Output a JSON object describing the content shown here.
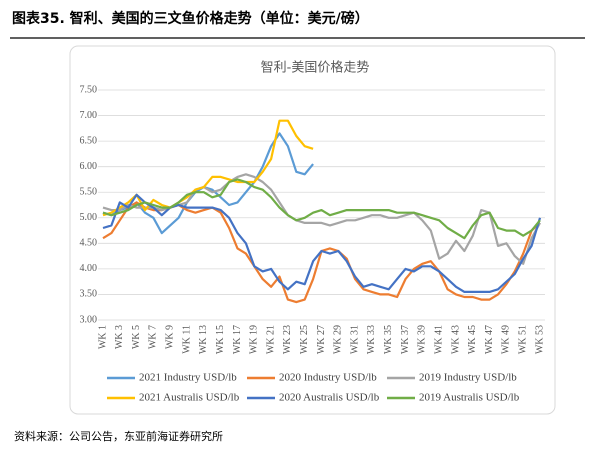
{
  "header": {
    "title": "图表35. 智利、美国的三文鱼价格走势（单位：美元/磅）"
  },
  "source": "资料来源：公司公告，东亚前海证券研究所",
  "chart_data": {
    "type": "line",
    "title": "智利-美国价格走势",
    "categories": [
      "WK 1",
      null,
      "WK 3",
      null,
      "WK 5",
      null,
      "WK 7",
      null,
      "WK 9",
      null,
      "WK 11",
      null,
      "WK 13",
      null,
      "WK 15",
      null,
      "WK 17",
      null,
      "WK 19",
      null,
      "WK 21",
      null,
      "WK 23",
      null,
      "WK 25",
      null,
      "WK 27",
      null,
      "WK 29",
      null,
      "WK 31",
      null,
      "WK 33",
      null,
      "WK 35",
      null,
      "WK 37",
      null,
      "WK 39",
      null,
      "WK 41",
      null,
      "WK 43",
      null,
      "WK 45",
      null,
      "WK 47",
      null,
      "WK 49",
      null,
      "WK 51",
      null,
      "WK 53"
    ],
    "ylim": [
      3,
      7.5
    ],
    "yticks": [
      {
        "value": 3,
        "label": "3.00"
      },
      {
        "value": 3.5,
        "label": "3.50"
      },
      {
        "value": 4,
        "label": "4.00"
      },
      {
        "value": 4.5,
        "label": "4.50"
      },
      {
        "value": 5,
        "label": "5.00"
      },
      {
        "value": 5.5,
        "label": "5.50"
      },
      {
        "value": 6,
        "label": "6.00"
      },
      {
        "value": 6.5,
        "label": "6.50"
      },
      {
        "value": 7,
        "label": "7.00"
      },
      {
        "value": 7.5,
        "label": "7.50"
      }
    ],
    "grid": true,
    "legend": "bottom",
    "series": [
      {
        "name": "2021 Industry USD/lb",
        "color": "#5B9BD5",
        "values": [
          5.1,
          5.05,
          5.15,
          5.2,
          5.3,
          5.1,
          5.0,
          4.7,
          4.85,
          5.0,
          5.3,
          5.5,
          5.6,
          5.55,
          5.4,
          5.25,
          5.3,
          5.5,
          5.7,
          6.0,
          6.4,
          6.65,
          6.4,
          5.9,
          5.85,
          6.05,
          null,
          null,
          null,
          null,
          null,
          null,
          null,
          null,
          null,
          null,
          null,
          null,
          null,
          null,
          null,
          null,
          null,
          null,
          null,
          null,
          null,
          null,
          null,
          null,
          null,
          null,
          null
        ]
      },
      {
        "name": "2020 Industry USD/lb",
        "color": "#ED7D31",
        "values": [
          4.6,
          4.7,
          4.95,
          5.2,
          5.3,
          5.2,
          5.15,
          5.15,
          5.2,
          5.25,
          5.15,
          5.1,
          5.15,
          5.2,
          5.1,
          4.8,
          4.4,
          4.3,
          4.05,
          3.8,
          3.65,
          3.85,
          3.4,
          3.35,
          3.4,
          3.8,
          4.35,
          4.4,
          4.35,
          4.2,
          3.8,
          3.6,
          3.55,
          3.5,
          3.5,
          3.45,
          3.8,
          4.0,
          4.1,
          4.15,
          3.95,
          3.6,
          3.5,
          3.45,
          3.45,
          3.4,
          3.4,
          3.5,
          3.7,
          3.95,
          4.3,
          4.75,
          4.9
        ]
      },
      {
        "name": "2019 Industry USD/lb",
        "color": "#A5A5A5",
        "values": [
          5.2,
          5.15,
          5.15,
          5.25,
          5.2,
          5.2,
          5.2,
          5.15,
          5.2,
          5.25,
          5.3,
          5.55,
          5.6,
          5.5,
          5.55,
          5.7,
          5.8,
          5.85,
          5.8,
          5.7,
          5.55,
          5.3,
          5.05,
          4.95,
          4.9,
          4.9,
          4.9,
          4.85,
          4.9,
          4.95,
          4.95,
          5.0,
          5.05,
          5.05,
          5.0,
          5.0,
          5.05,
          5.1,
          4.95,
          4.75,
          4.2,
          4.3,
          4.55,
          4.35,
          4.65,
          5.15,
          5.1,
          4.45,
          4.5,
          4.25,
          4.1,
          4.6,
          4.9
        ]
      },
      {
        "name": "2021 Australis USD/lb",
        "color": "#FFC000",
        "values": [
          5.05,
          5.1,
          5.2,
          5.3,
          5.45,
          5.15,
          5.35,
          5.25,
          5.2,
          5.3,
          5.4,
          5.55,
          5.6,
          5.8,
          5.8,
          5.75,
          5.7,
          5.7,
          5.7,
          5.9,
          6.15,
          6.9,
          6.9,
          6.6,
          6.4,
          6.35,
          null,
          null,
          null,
          null,
          null,
          null,
          null,
          null,
          null,
          null,
          null,
          null,
          null,
          null,
          null,
          null,
          null,
          null,
          null,
          null,
          null,
          null,
          null,
          null,
          null,
          null,
          null
        ]
      },
      {
        "name": "2020 Australis USD/lb",
        "color": "#4472C4",
        "values": [
          4.8,
          4.85,
          5.3,
          5.2,
          5.45,
          5.3,
          5.2,
          5.05,
          5.2,
          5.25,
          5.2,
          5.2,
          5.2,
          5.2,
          5.15,
          5.0,
          4.7,
          4.5,
          4.05,
          3.95,
          4.0,
          3.75,
          3.6,
          3.75,
          3.7,
          4.15,
          4.35,
          4.3,
          4.35,
          4.15,
          3.85,
          3.65,
          3.7,
          3.65,
          3.6,
          3.8,
          4.0,
          3.95,
          4.05,
          4.05,
          3.95,
          3.8,
          3.65,
          3.55,
          3.55,
          3.55,
          3.55,
          3.6,
          3.75,
          3.9,
          4.2,
          4.45,
          5.0
        ]
      },
      {
        "name": "2019 Australis USD/lb",
        "color": "#70AD47",
        "values": [
          5.1,
          5.05,
          5.1,
          5.15,
          5.25,
          5.3,
          5.25,
          5.2,
          5.2,
          5.3,
          5.45,
          5.5,
          5.5,
          5.4,
          5.45,
          5.7,
          5.75,
          5.7,
          5.6,
          5.55,
          5.4,
          5.2,
          5.05,
          4.95,
          5.0,
          5.1,
          5.15,
          5.05,
          5.1,
          5.15,
          5.15,
          5.15,
          5.15,
          5.15,
          5.15,
          5.1,
          5.1,
          5.1,
          5.05,
          5.0,
          4.95,
          4.8,
          4.7,
          4.6,
          4.85,
          5.05,
          5.1,
          4.8,
          4.75,
          4.75,
          4.65,
          4.75,
          4.95
        ]
      }
    ]
  }
}
